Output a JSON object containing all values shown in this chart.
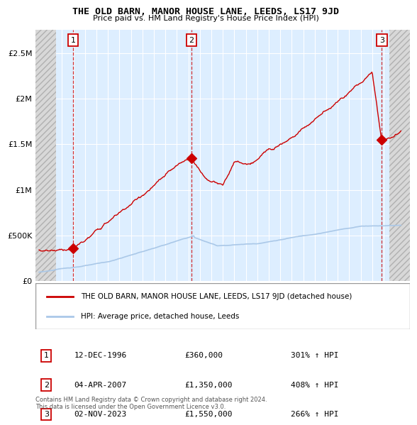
{
  "title": "THE OLD BARN, MANOR HOUSE LANE, LEEDS, LS17 9JD",
  "subtitle": "Price paid vs. HM Land Registry's House Price Index (HPI)",
  "sale_labels": [
    "1",
    "2",
    "3"
  ],
  "sale_dates_num": [
    1996.96,
    2007.27,
    2023.84
  ],
  "sale_prices": [
    360000,
    1350000,
    1550000
  ],
  "sale_dates_display": [
    "12-DEC-1996",
    "04-APR-2007",
    "02-NOV-2023"
  ],
  "sale_prices_display": [
    "£360,000",
    "£1,350,000",
    "£1,550,000"
  ],
  "sale_hpi_display": [
    "301% ↑ HPI",
    "408% ↑ HPI",
    "266% ↑ HPI"
  ],
  "hpi_color": "#aac8e8",
  "sale_color": "#cc0000",
  "legend_label_sale": "THE OLD BARN, MANOR HOUSE LANE, LEEDS, LS17 9JD (detached house)",
  "legend_label_hpi": "HPI: Average price, detached house, Leeds",
  "footer": "Contains HM Land Registry data © Crown copyright and database right 2024.\nThis data is licensed under the Open Government Licence v3.0.",
  "ylim": [
    0,
    2750000
  ],
  "yticks": [
    0,
    500000,
    1000000,
    1500000,
    2000000,
    2500000
  ],
  "ytick_labels": [
    "£0",
    "£500K",
    "£1M",
    "£1.5M",
    "£2M",
    "£2.5M"
  ],
  "xlim_left": 1993.7,
  "xlim_right": 2026.3,
  "hatch_left_end": 1995.5,
  "hatch_right_start": 2024.5,
  "chart_bg": "#ddeeff",
  "hatch_fc": "#cccccc"
}
